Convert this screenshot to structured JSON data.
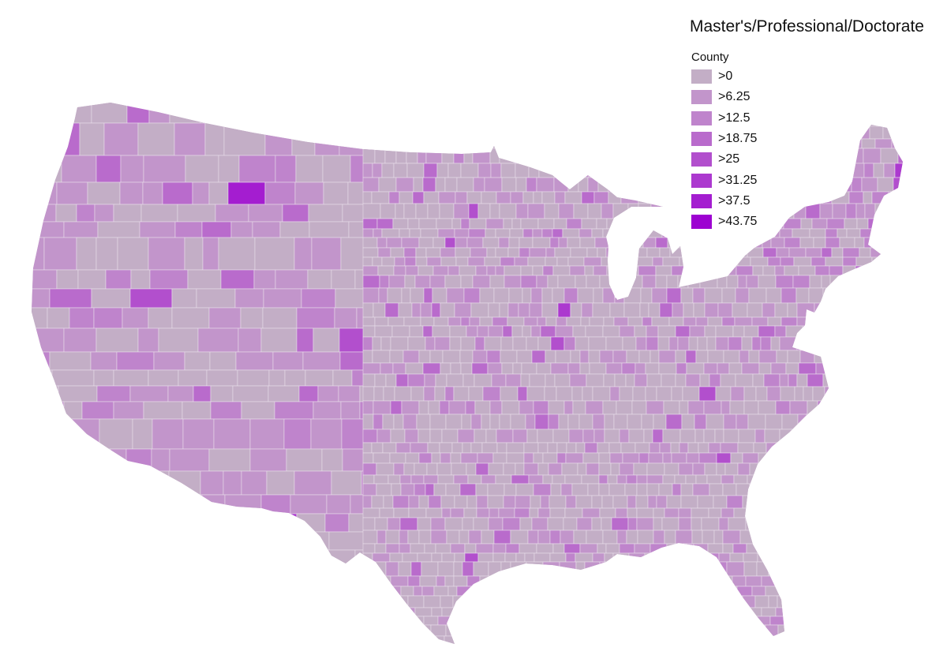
{
  "legend": {
    "title": "Master's/Professional/Doctorate",
    "subtitle": "County",
    "bins": [
      {
        "label": ">0",
        "color": "#c3aec6"
      },
      {
        "label": ">6.25",
        "color": "#c295cb"
      },
      {
        "label": ">12.5",
        "color": "#bf84cc"
      },
      {
        "label": ">18.75",
        "color": "#b96bcc"
      },
      {
        "label": ">25",
        "color": "#b24fcd"
      },
      {
        "label": ">31.25",
        "color": "#ac39cf"
      },
      {
        "label": ">37.5",
        "color": "#a41dd0"
      },
      {
        "label": ">43.75",
        "color": "#9d02d1"
      }
    ]
  },
  "map": {
    "type": "choropleth",
    "region": "contiguous United States",
    "unit": "county",
    "background": "#ffffff",
    "border_color": "#e8ddea"
  }
}
